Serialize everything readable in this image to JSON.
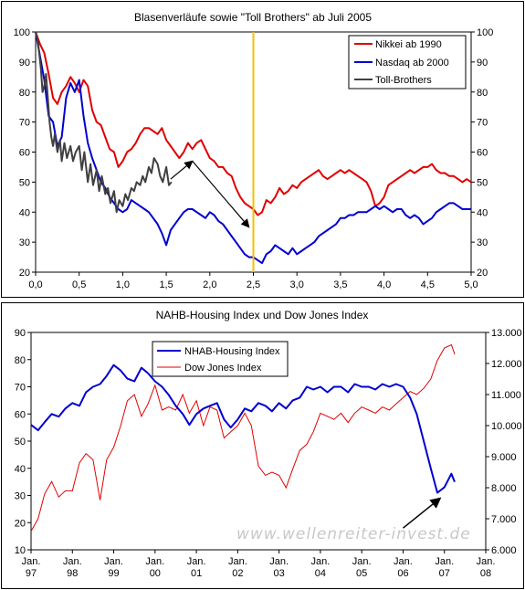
{
  "chart_data": [
    {
      "type": "line",
      "title": "Blasenverläufe sowie \"Toll Brothers\" ab Juli 2005",
      "xlim": [
        0,
        5
      ],
      "ylim": [
        20,
        100
      ],
      "y2lim": [
        20,
        100
      ],
      "x_ticks": [
        "0,0",
        "0,5",
        "1,0",
        "1,5",
        "2,0",
        "2,5",
        "3,0",
        "3,5",
        "4,0",
        "4,5",
        "5,0"
      ],
      "y_ticks": [
        "20",
        "30",
        "40",
        "50",
        "60",
        "70",
        "80",
        "90",
        "100"
      ],
      "y2_ticks": [
        "20",
        "30",
        "40",
        "50",
        "60",
        "70",
        "80",
        "90",
        "100"
      ],
      "grid": false,
      "legend_position": "top-right",
      "vline_x": 2.5,
      "vline_color": "#f5c000",
      "arrow": {
        "from": [
          1.55,
          51
        ],
        "to": [
          1.8,
          57
        ],
        "to2": [
          2.45,
          35
        ]
      },
      "series": [
        {
          "name": "Nikkei ab 1990",
          "color": "#e00000",
          "x": [
            0,
            0.05,
            0.1,
            0.15,
            0.2,
            0.25,
            0.3,
            0.35,
            0.4,
            0.45,
            0.5,
            0.55,
            0.6,
            0.65,
            0.7,
            0.75,
            0.8,
            0.85,
            0.9,
            0.95,
            1.0,
            1.05,
            1.1,
            1.15,
            1.2,
            1.25,
            1.3,
            1.35,
            1.4,
            1.45,
            1.5,
            1.55,
            1.6,
            1.65,
            1.7,
            1.75,
            1.8,
            1.85,
            1.9,
            1.95,
            2.0,
            2.05,
            2.1,
            2.15,
            2.2,
            2.25,
            2.3,
            2.35,
            2.4,
            2.45,
            2.5,
            2.55,
            2.6,
            2.65,
            2.7,
            2.75,
            2.8,
            2.85,
            2.9,
            2.95,
            3.0,
            3.05,
            3.1,
            3.15,
            3.2,
            3.25,
            3.3,
            3.35,
            3.4,
            3.45,
            3.5,
            3.55,
            3.6,
            3.65,
            3.7,
            3.75,
            3.8,
            3.85,
            3.9,
            3.95,
            4.0,
            4.05,
            4.1,
            4.15,
            4.2,
            4.25,
            4.3,
            4.35,
            4.4,
            4.45,
            4.5,
            4.55,
            4.6,
            4.65,
            4.7,
            4.75,
            4.8,
            4.85,
            4.9,
            4.95,
            5.0
          ],
          "values": [
            100,
            96,
            93,
            86,
            78,
            76,
            80,
            82,
            85,
            83,
            80,
            84,
            82,
            74,
            70,
            69,
            65,
            61,
            60,
            55,
            57,
            60,
            61,
            63,
            66,
            68,
            68,
            67,
            66,
            68,
            64,
            62,
            60,
            58,
            60,
            63,
            61,
            63,
            64,
            61,
            58,
            57,
            55,
            55,
            53,
            52,
            48,
            45,
            43,
            42,
            41,
            39,
            40,
            44,
            43,
            45,
            48,
            46,
            47,
            49,
            48,
            50,
            51,
            52,
            53,
            54,
            52,
            51,
            52,
            53,
            54,
            53,
            54,
            53,
            52,
            51,
            50,
            47,
            42,
            43,
            45,
            49,
            50,
            51,
            52,
            53,
            54,
            53,
            54,
            55,
            55,
            56,
            54,
            53,
            53,
            52,
            52,
            51,
            50,
            51,
            50
          ]
        },
        {
          "name": "Nasdaq ab 2000",
          "color": "#0000d0",
          "x": [
            0,
            0.05,
            0.1,
            0.15,
            0.2,
            0.25,
            0.3,
            0.35,
            0.4,
            0.45,
            0.5,
            0.55,
            0.6,
            0.65,
            0.7,
            0.75,
            0.8,
            0.85,
            0.9,
            0.95,
            1.0,
            1.05,
            1.1,
            1.15,
            1.2,
            1.25,
            1.3,
            1.35,
            1.4,
            1.45,
            1.5,
            1.55,
            1.6,
            1.65,
            1.7,
            1.75,
            1.8,
            1.85,
            1.9,
            1.95,
            2.0,
            2.05,
            2.1,
            2.15,
            2.2,
            2.25,
            2.3,
            2.35,
            2.4,
            2.45,
            2.5,
            2.55,
            2.6,
            2.65,
            2.7,
            2.75,
            2.8,
            2.85,
            2.9,
            2.95,
            3.0,
            3.05,
            3.1,
            3.15,
            3.2,
            3.25,
            3.3,
            3.35,
            3.4,
            3.45,
            3.5,
            3.55,
            3.6,
            3.65,
            3.7,
            3.75,
            3.8,
            3.85,
            3.9,
            3.95,
            4.0,
            4.05,
            4.1,
            4.15,
            4.2,
            4.25,
            4.3,
            4.35,
            4.4,
            4.45,
            4.5,
            4.55,
            4.6,
            4.65,
            4.7,
            4.75,
            4.8,
            4.85,
            4.9,
            4.95,
            5.0
          ],
          "values": [
            100,
            92,
            84,
            72,
            70,
            62,
            65,
            78,
            83,
            80,
            84,
            72,
            63,
            58,
            54,
            50,
            48,
            45,
            43,
            41,
            40,
            41,
            44,
            43,
            42,
            41,
            40,
            38,
            36,
            33,
            29,
            34,
            36,
            38,
            40,
            41,
            41,
            40,
            39,
            38,
            40,
            39,
            37,
            36,
            34,
            32,
            30,
            28,
            26,
            25,
            25,
            24,
            23,
            26,
            27,
            29,
            28,
            27,
            26,
            28,
            26,
            27,
            28,
            29,
            30,
            32,
            33,
            34,
            35,
            36,
            38,
            38,
            39,
            39,
            40,
            40,
            40,
            41,
            42,
            41,
            42,
            41,
            40,
            41,
            41,
            39,
            38,
            39,
            38,
            36,
            37,
            38,
            40,
            41,
            42,
            43,
            43,
            42,
            41,
            41,
            41
          ]
        },
        {
          "name": "Toll-Brothers",
          "color": "#404040",
          "x": [
            0,
            0.03,
            0.06,
            0.08,
            0.1,
            0.12,
            0.14,
            0.16,
            0.18,
            0.2,
            0.22,
            0.25,
            0.28,
            0.3,
            0.33,
            0.36,
            0.4,
            0.43,
            0.46,
            0.5,
            0.53,
            0.56,
            0.6,
            0.63,
            0.66,
            0.7,
            0.73,
            0.76,
            0.8,
            0.83,
            0.86,
            0.9,
            0.93,
            0.96,
            1.0,
            1.03,
            1.06,
            1.1,
            1.13,
            1.16,
            1.2,
            1.23,
            1.26,
            1.3,
            1.33,
            1.36,
            1.4,
            1.43,
            1.46,
            1.5,
            1.53,
            1.56
          ],
          "values": [
            100,
            96,
            88,
            80,
            82,
            86,
            78,
            70,
            65,
            62,
            66,
            60,
            64,
            57,
            63,
            58,
            62,
            57,
            60,
            62,
            54,
            60,
            50,
            56,
            49,
            54,
            47,
            52,
            46,
            48,
            43,
            47,
            40,
            44,
            42,
            46,
            44,
            48,
            47,
            50,
            49,
            52,
            50,
            55,
            53,
            58,
            56,
            52,
            50,
            55,
            49,
            50
          ]
        }
      ]
    },
    {
      "type": "line",
      "title": "NAHB-Housing Index und Dow Jones Index",
      "ylim": [
        10,
        90
      ],
      "y2lim": [
        6000,
        13000
      ],
      "x_ticks": [
        [
          "Jan.",
          "97"
        ],
        [
          "Jan.",
          "98"
        ],
        [
          "Jan.",
          "99"
        ],
        [
          "Jan.",
          "00"
        ],
        [
          "Jan.",
          "01"
        ],
        [
          "Jan.",
          "02"
        ],
        [
          "Jan.",
          "03"
        ],
        [
          "Jan.",
          "04"
        ],
        [
          "Jan.",
          "05"
        ],
        [
          "Jan.",
          "06"
        ],
        [
          "Jan.",
          "07"
        ],
        [
          "Jan.",
          "08"
        ]
      ],
      "y_ticks": [
        "10",
        "20",
        "30",
        "40",
        "50",
        "60",
        "70",
        "80",
        "90"
      ],
      "y2_ticks": [
        "6.000",
        "7.000",
        "8.000",
        "9.000",
        "10.000",
        "11.000",
        "12.000",
        "13.000"
      ],
      "grid": false,
      "legend_position": "top-left",
      "watermark": "www.wellenreiter-invest.de",
      "arrow": {
        "from": [
          2006.0,
          18
        ],
        "to": [
          2006.9,
          29
        ]
      },
      "series": [
        {
          "name": "NHAB-Housing Index",
          "color": "#0000d0",
          "x": [
            1997.0,
            1997.17,
            1997.33,
            1997.5,
            1997.67,
            1997.83,
            1998.0,
            1998.17,
            1998.33,
            1998.5,
            1998.67,
            1998.83,
            1999.0,
            1999.17,
            1999.33,
            1999.5,
            1999.67,
            1999.83,
            2000.0,
            2000.17,
            2000.33,
            2000.5,
            2000.67,
            2000.83,
            2001.0,
            2001.17,
            2001.33,
            2001.5,
            2001.67,
            2001.83,
            2002.0,
            2002.17,
            2002.33,
            2002.5,
            2002.67,
            2002.83,
            2003.0,
            2003.17,
            2003.33,
            2003.5,
            2003.67,
            2003.83,
            2004.0,
            2004.17,
            2004.33,
            2004.5,
            2004.67,
            2004.83,
            2005.0,
            2005.17,
            2005.33,
            2005.5,
            2005.67,
            2005.83,
            2006.0,
            2006.17,
            2006.33,
            2006.5,
            2006.67,
            2006.83,
            2007.0,
            2007.17,
            2007.25
          ],
          "values": [
            56,
            54,
            57,
            60,
            59,
            62,
            64,
            63,
            68,
            70,
            71,
            74,
            78,
            76,
            73,
            72,
            77,
            75,
            72,
            70,
            67,
            63,
            60,
            56,
            60,
            62,
            63,
            64,
            58,
            55,
            58,
            62,
            61,
            64,
            63,
            61,
            64,
            62,
            65,
            66,
            70,
            69,
            70,
            68,
            70,
            70,
            68,
            71,
            70,
            70,
            69,
            71,
            70,
            71,
            70,
            66,
            60,
            50,
            40,
            31,
            33,
            38,
            35
          ]
        },
        {
          "name": "Dow Jones Index",
          "color": "#e00000",
          "x": [
            1997.0,
            1997.17,
            1997.33,
            1997.5,
            1997.67,
            1997.83,
            1998.0,
            1998.17,
            1998.33,
            1998.5,
            1998.67,
            1998.83,
            1999.0,
            1999.17,
            1999.33,
            1999.5,
            1999.67,
            1999.83,
            2000.0,
            2000.17,
            2000.33,
            2000.5,
            2000.67,
            2000.83,
            2001.0,
            2001.17,
            2001.33,
            2001.5,
            2001.67,
            2001.83,
            2002.0,
            2002.17,
            2002.33,
            2002.5,
            2002.67,
            2002.83,
            2003.0,
            2003.17,
            2003.33,
            2003.5,
            2003.67,
            2003.83,
            2004.0,
            2004.17,
            2004.33,
            2004.5,
            2004.67,
            2004.83,
            2005.0,
            2005.17,
            2005.33,
            2005.5,
            2005.67,
            2005.83,
            2006.0,
            2006.17,
            2006.33,
            2006.5,
            2006.67,
            2006.83,
            2007.0,
            2007.17,
            2007.25
          ],
          "values": [
            6600,
            7000,
            7800,
            8200,
            7700,
            7900,
            7900,
            8800,
            9100,
            8900,
            7600,
            8900,
            9300,
            10000,
            10800,
            11000,
            10300,
            10700,
            11300,
            10500,
            10600,
            10500,
            11000,
            10400,
            10800,
            10000,
            10600,
            10500,
            9600,
            9800,
            10000,
            10400,
            10000,
            8700,
            8400,
            8500,
            8400,
            8000,
            8600,
            9200,
            9400,
            9800,
            10400,
            10300,
            10200,
            10400,
            10100,
            10400,
            10600,
            10500,
            10400,
            10600,
            10500,
            10700,
            10900,
            11100,
            11000,
            11200,
            11500,
            12100,
            12500,
            12600,
            12300
          ]
        }
      ]
    }
  ]
}
